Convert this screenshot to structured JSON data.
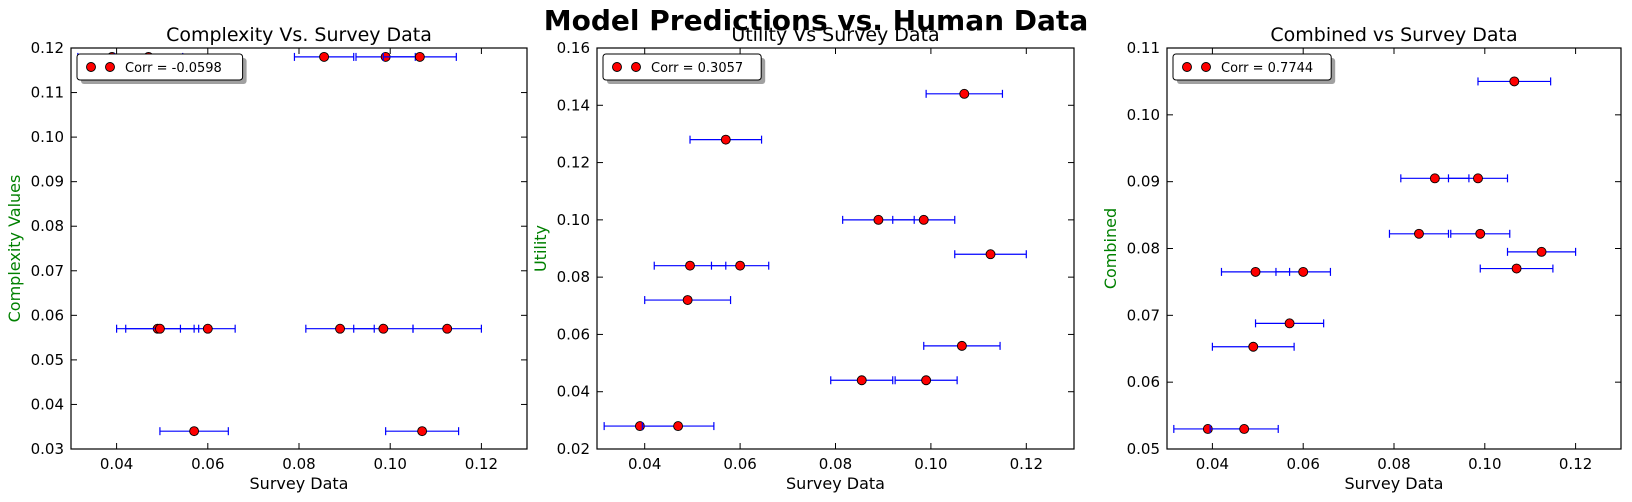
{
  "suptitle": "Model Predictions vs. Human Data",
  "colors": {
    "marker_fill": "#ff0000",
    "errorbar": "#0000ff",
    "ylabel": "#008000",
    "axis": "#000000"
  },
  "chart_data": [
    {
      "type": "scatter",
      "title": "Complexity Vs. Survey Data",
      "xlabel": "Survey Data",
      "ylabel": "Complexity Values",
      "xlim": [
        0.03,
        0.13
      ],
      "ylim": [
        0.03,
        0.12
      ],
      "xticks": [
        0.04,
        0.06,
        0.08,
        0.1,
        0.12
      ],
      "xtick_labels": [
        "0.04",
        "0.06",
        "0.08",
        "0.10",
        "0.12"
      ],
      "yticks": [
        0.03,
        0.04,
        0.05,
        0.06,
        0.07,
        0.08,
        0.09,
        0.1,
        0.11,
        0.12
      ],
      "ytick_labels": [
        "0.03",
        "0.04",
        "0.05",
        "0.06",
        "0.07",
        "0.08",
        "0.09",
        "0.10",
        "0.11",
        "0.12"
      ],
      "legend": "Corr = -0.0598",
      "legend_loc": "upper left",
      "points": [
        {
          "x": 0.039,
          "y": 0.118,
          "xerr": 0.0075
        },
        {
          "x": 0.047,
          "y": 0.118,
          "xerr": 0.0075
        },
        {
          "x": 0.0855,
          "y": 0.118,
          "xerr": 0.0065
        },
        {
          "x": 0.099,
          "y": 0.118,
          "xerr": 0.0065
        },
        {
          "x": 0.1065,
          "y": 0.118,
          "xerr": 0.008
        },
        {
          "x": 0.049,
          "y": 0.057,
          "xerr": 0.009
        },
        {
          "x": 0.0495,
          "y": 0.057,
          "xerr": 0.0075
        },
        {
          "x": 0.06,
          "y": 0.057,
          "xerr": 0.006
        },
        {
          "x": 0.089,
          "y": 0.057,
          "xerr": 0.0075
        },
        {
          "x": 0.0985,
          "y": 0.057,
          "xerr": 0.0065
        },
        {
          "x": 0.1125,
          "y": 0.057,
          "xerr": 0.0075
        },
        {
          "x": 0.057,
          "y": 0.034,
          "xerr": 0.0075
        },
        {
          "x": 0.107,
          "y": 0.034,
          "xerr": 0.008
        }
      ]
    },
    {
      "type": "scatter",
      "title": "Utility Vs Survey Data",
      "xlabel": "Survey Data",
      "ylabel": "Utility",
      "xlim": [
        0.03,
        0.13
      ],
      "ylim": [
        0.02,
        0.16
      ],
      "xticks": [
        0.04,
        0.06,
        0.08,
        0.1,
        0.12
      ],
      "xtick_labels": [
        "0.04",
        "0.06",
        "0.08",
        "0.10",
        "0.12"
      ],
      "yticks": [
        0.02,
        0.04,
        0.06,
        0.08,
        0.1,
        0.12,
        0.14,
        0.16
      ],
      "ytick_labels": [
        "0.02",
        "0.04",
        "0.06",
        "0.08",
        "0.10",
        "0.12",
        "0.14",
        "0.16"
      ],
      "legend": "Corr = 0.3057",
      "legend_loc": "upper left",
      "points": [
        {
          "x": 0.107,
          "y": 0.144,
          "xerr": 0.008
        },
        {
          "x": 0.057,
          "y": 0.128,
          "xerr": 0.0075
        },
        {
          "x": 0.089,
          "y": 0.1,
          "xerr": 0.0075
        },
        {
          "x": 0.0985,
          "y": 0.1,
          "xerr": 0.0065
        },
        {
          "x": 0.1125,
          "y": 0.088,
          "xerr": 0.0075
        },
        {
          "x": 0.0495,
          "y": 0.084,
          "xerr": 0.0075
        },
        {
          "x": 0.06,
          "y": 0.084,
          "xerr": 0.006
        },
        {
          "x": 0.049,
          "y": 0.072,
          "xerr": 0.009
        },
        {
          "x": 0.1065,
          "y": 0.056,
          "xerr": 0.008
        },
        {
          "x": 0.0855,
          "y": 0.044,
          "xerr": 0.0065
        },
        {
          "x": 0.099,
          "y": 0.044,
          "xerr": 0.0065
        },
        {
          "x": 0.039,
          "y": 0.028,
          "xerr": 0.0075
        },
        {
          "x": 0.047,
          "y": 0.028,
          "xerr": 0.0075
        }
      ]
    },
    {
      "type": "scatter",
      "title": "Combined vs Survey Data",
      "xlabel": "Survey Data",
      "ylabel": "Combined",
      "xlim": [
        0.03,
        0.13
      ],
      "ylim": [
        0.05,
        0.11
      ],
      "xticks": [
        0.04,
        0.06,
        0.08,
        0.1,
        0.12
      ],
      "xtick_labels": [
        "0.04",
        "0.06",
        "0.08",
        "0.10",
        "0.12"
      ],
      "yticks": [
        0.05,
        0.06,
        0.07,
        0.08,
        0.09,
        0.1,
        0.11
      ],
      "ytick_labels": [
        "0.05",
        "0.06",
        "0.07",
        "0.08",
        "0.09",
        "0.10",
        "0.11"
      ],
      "legend": "Corr = 0.7744",
      "legend_loc": "upper left",
      "points": [
        {
          "x": 0.1065,
          "y": 0.105,
          "xerr": 0.008
        },
        {
          "x": 0.089,
          "y": 0.0905,
          "xerr": 0.0075
        },
        {
          "x": 0.0985,
          "y": 0.0905,
          "xerr": 0.0065
        },
        {
          "x": 0.0855,
          "y": 0.0822,
          "xerr": 0.0065
        },
        {
          "x": 0.099,
          "y": 0.0822,
          "xerr": 0.0065
        },
        {
          "x": 0.1125,
          "y": 0.0795,
          "xerr": 0.0075
        },
        {
          "x": 0.107,
          "y": 0.077,
          "xerr": 0.008
        },
        {
          "x": 0.0495,
          "y": 0.0765,
          "xerr": 0.0075
        },
        {
          "x": 0.06,
          "y": 0.0765,
          "xerr": 0.006
        },
        {
          "x": 0.057,
          "y": 0.0688,
          "xerr": 0.0075
        },
        {
          "x": 0.049,
          "y": 0.0653,
          "xerr": 0.009
        },
        {
          "x": 0.039,
          "y": 0.053,
          "xerr": 0.0075
        },
        {
          "x": 0.047,
          "y": 0.053,
          "xerr": 0.0075
        }
      ]
    }
  ]
}
